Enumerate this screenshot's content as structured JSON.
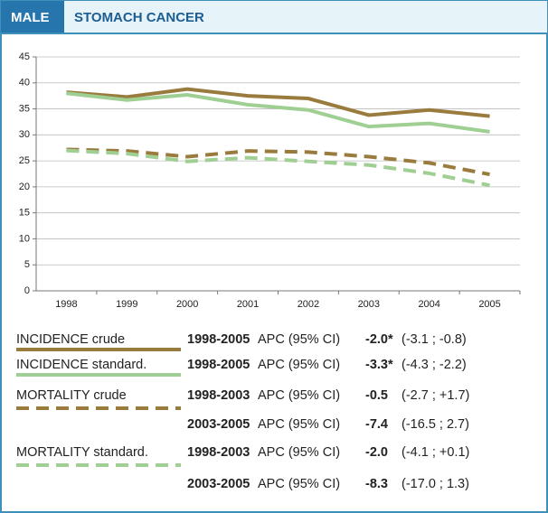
{
  "chart_data": {
    "type": "line",
    "title": "MALE",
    "subtitle": "STOMACH CANCER",
    "categories": [
      "1998",
      "1999",
      "2000",
      "2001",
      "2002",
      "2003",
      "2004",
      "2005"
    ],
    "ylim": [
      0,
      45
    ],
    "yticks": [
      0,
      5,
      10,
      15,
      20,
      25,
      30,
      35,
      40,
      45
    ],
    "grid": true,
    "apc_label": "APC (95% CI)",
    "series": [
      {
        "name": "INCIDENCE crude",
        "color": "#9a7b3e",
        "dash": false,
        "values": [
          38.2,
          37.3,
          38.8,
          37.5,
          37.0,
          33.8,
          34.8,
          33.6
        ],
        "trends": [
          {
            "period": "1998-2005",
            "apc": "-2.0*",
            "ci": "(-3.1 ; -0.8)"
          }
        ]
      },
      {
        "name": "INCIDENCE standard.",
        "color": "#9fcf93",
        "dash": false,
        "values": [
          38.0,
          36.7,
          37.7,
          35.8,
          34.8,
          31.6,
          32.2,
          30.6
        ],
        "trends": [
          {
            "period": "1998-2005",
            "apc": "-3.3*",
            "ci": "(-4.3 ; -2.2)"
          }
        ]
      },
      {
        "name": "MORTALITY crude",
        "color": "#9a7b3e",
        "dash": true,
        "values": [
          27.2,
          26.9,
          25.8,
          26.9,
          26.7,
          25.8,
          24.6,
          22.4
        ],
        "trends": [
          {
            "period": "1998-2003",
            "apc": "-0.5",
            "ci": "(-2.7 ; +1.7)"
          },
          {
            "period": "2003-2005",
            "apc": "-7.4",
            "ci": "(-16.5 ; 2.7)"
          }
        ]
      },
      {
        "name": "MORTALITY standard.",
        "color": "#9fcf93",
        "dash": true,
        "values": [
          27.0,
          26.4,
          24.9,
          25.6,
          24.9,
          24.2,
          22.6,
          20.3
        ],
        "trends": [
          {
            "period": "1998-2003",
            "apc": "-2.0",
            "ci": "(-4.1 ; +0.1)"
          },
          {
            "period": "2003-2005",
            "apc": "-8.3",
            "ci": "(-17.0 ; 1.3)"
          }
        ]
      }
    ]
  }
}
